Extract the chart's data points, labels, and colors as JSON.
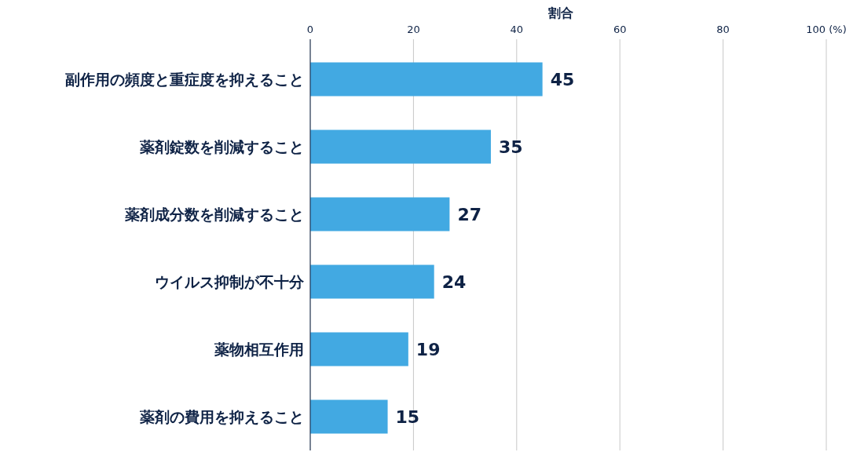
{
  "chart_data": {
    "type": "bar",
    "orientation": "horizontal",
    "xlabel": "割合",
    "categories": [
      "副作用の頻度と重症度を抑えること",
      "薬剤錠数を削減すること",
      "薬剤成分数を削減すること",
      "ウイルス抑制が不十分",
      "薬物相互作用",
      "薬剤の費用を抑えること"
    ],
    "values": [
      45,
      35,
      27,
      24,
      19,
      15
    ],
    "color": "#42a9e2",
    "xlim": [
      0,
      100
    ],
    "xticks": [
      0,
      20,
      40,
      60,
      80,
      {
        "value": 100,
        "label": "100 (%)"
      }
    ],
    "grid": "x",
    "data_labels": true
  }
}
